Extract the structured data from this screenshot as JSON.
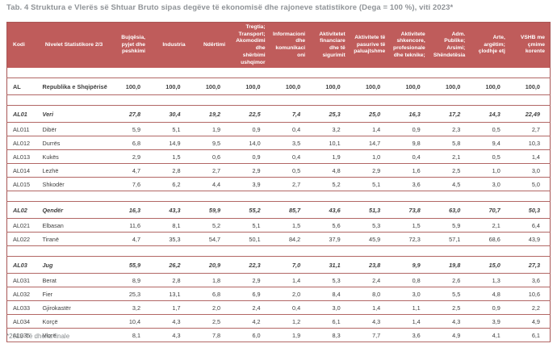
{
  "page": {
    "title": "Tab. 4 Struktura e Vlerës së Shtuar Bruto sipas degëve të ekonomisë dhe rajoneve statistikore (Dega = 100 %), viti 2023*",
    "footnote": "*2023 Të dhëna finale"
  },
  "colors": {
    "header_bg": "#bf5c5b",
    "header_text": "#ffffff",
    "border": "#a85655",
    "row_line": "#b26765",
    "title_text": "#8f9397",
    "data_text": "#3e3e3e"
  },
  "table": {
    "columns": [
      "Kodi",
      "Nivelet Statistikore 2/3",
      "Bujqësia, pyjet dhe peshkimi",
      "Industria",
      "Ndërtimi",
      "Tregtia; Transport; Akomodimi dhe shërbimi ushqimor",
      "Informacioni dhe komunikacioni",
      "Aktivitetet financiare dhe të sigurimit",
      "Aktivitete të pasurive të paluajtshme",
      "Aktivitete shkencore, profesionale dhe teknike;",
      "Adm. Publike; Arsimi; Shëndetësia",
      "Arte, argëtim; çlodhje etj",
      "VSHB me çmime korente"
    ],
    "rows": [
      {
        "style": "spacer"
      },
      {
        "style": "total",
        "kodi": "AL",
        "name": "Republika e Shqipërisë",
        "values": [
          "100,0",
          "100,0",
          "100,0",
          "100,0",
          "100,0",
          "100,0",
          "100,0",
          "100,0",
          "100,0",
          "100,0",
          "100,0"
        ]
      },
      {
        "style": "spacer"
      },
      {
        "style": "group",
        "kodi": "AL01",
        "name": "Veri",
        "values": [
          "27,8",
          "30,4",
          "19,2",
          "22,5",
          "7,4",
          "25,3",
          "25,0",
          "16,3",
          "17,2",
          "14,3",
          "22,49"
        ]
      },
      {
        "style": "normal",
        "kodi": "AL011",
        "name": "Dibër",
        "values": [
          "5,9",
          "5,1",
          "1,9",
          "0,9",
          "0,4",
          "3,2",
          "1,4",
          "0,9",
          "2,3",
          "0,5",
          "2,7"
        ]
      },
      {
        "style": "normal",
        "kodi": "AL012",
        "name": "Durrës",
        "values": [
          "6,8",
          "14,9",
          "9,5",
          "14,0",
          "3,5",
          "10,1",
          "14,7",
          "9,8",
          "5,8",
          "9,4",
          "10,3"
        ]
      },
      {
        "style": "normal",
        "kodi": "AL013",
        "name": "Kukës",
        "values": [
          "2,9",
          "1,5",
          "0,6",
          "0,9",
          "0,4",
          "1,9",
          "1,0",
          "0,4",
          "2,1",
          "0,5",
          "1,4"
        ]
      },
      {
        "style": "normal",
        "kodi": "AL014",
        "name": "Lezhë",
        "values": [
          "4,7",
          "2,8",
          "2,7",
          "2,9",
          "0,5",
          "4,8",
          "2,9",
          "1,6",
          "2,5",
          "1,0",
          "3,0"
        ]
      },
      {
        "style": "normal",
        "kodi": "AL015",
        "name": "Shkodër",
        "values": [
          "7,6",
          "6,2",
          "4,4",
          "3,9",
          "2,7",
          "5,2",
          "5,1",
          "3,6",
          "4,5",
          "3,0",
          "5,0"
        ]
      },
      {
        "style": "spacer"
      },
      {
        "style": "group",
        "kodi": "AL02",
        "name": "Qendër",
        "values": [
          "16,3",
          "43,3",
          "59,9",
          "55,2",
          "85,7",
          "43,6",
          "51,3",
          "73,8",
          "63,0",
          "70,7",
          "50,3"
        ]
      },
      {
        "style": "normal",
        "kodi": "AL021",
        "name": "Elbasan",
        "values": [
          "11,6",
          "8,1",
          "5,2",
          "5,1",
          "1,5",
          "5,6",
          "5,3",
          "1,5",
          "5,9",
          "2,1",
          "6,4"
        ]
      },
      {
        "style": "normal",
        "kodi": "AL022",
        "name": "Tiranë",
        "values": [
          "4,7",
          "35,3",
          "54,7",
          "50,1",
          "84,2",
          "37,9",
          "45,9",
          "72,3",
          "57,1",
          "68,6",
          "43,9"
        ]
      },
      {
        "style": "spacer"
      },
      {
        "style": "group",
        "kodi": "AL03",
        "name": "Jug",
        "values": [
          "55,9",
          "26,2",
          "20,9",
          "22,3",
          "7,0",
          "31,1",
          "23,8",
          "9,9",
          "19,8",
          "15,0",
          "27,3"
        ]
      },
      {
        "style": "normal",
        "kodi": "AL031",
        "name": "Berat",
        "values": [
          "8,9",
          "2,8",
          "1,8",
          "2,9",
          "1,4",
          "5,3",
          "2,4",
          "0,8",
          "2,6",
          "1,3",
          "3,6"
        ]
      },
      {
        "style": "normal",
        "kodi": "AL032",
        "name": "Fier",
        "values": [
          "25,3",
          "13,1",
          "6,8",
          "6,9",
          "2,0",
          "8,4",
          "8,0",
          "3,0",
          "5,5",
          "4,8",
          "10,6"
        ]
      },
      {
        "style": "normal",
        "kodi": "AL033",
        "name": "Gjirokastër",
        "values": [
          "3,2",
          "1,7",
          "2,0",
          "2,4",
          "0,4",
          "3,0",
          "1,4",
          "1,1",
          "2,5",
          "0,9",
          "2,2"
        ]
      },
      {
        "style": "normal",
        "kodi": "AL034",
        "name": "Korçë",
        "values": [
          "10,4",
          "4,3",
          "2,5",
          "4,2",
          "1,2",
          "6,1",
          "4,3",
          "1,4",
          "4,3",
          "3,9",
          "4,9"
        ]
      },
      {
        "style": "normal",
        "kodi": "AL035",
        "name": "Vlorë",
        "values": [
          "8,1",
          "4,3",
          "7,8",
          "6,0",
          "1,9",
          "8,3",
          "7,7",
          "3,6",
          "4,9",
          "4,1",
          "6,1"
        ]
      }
    ]
  }
}
